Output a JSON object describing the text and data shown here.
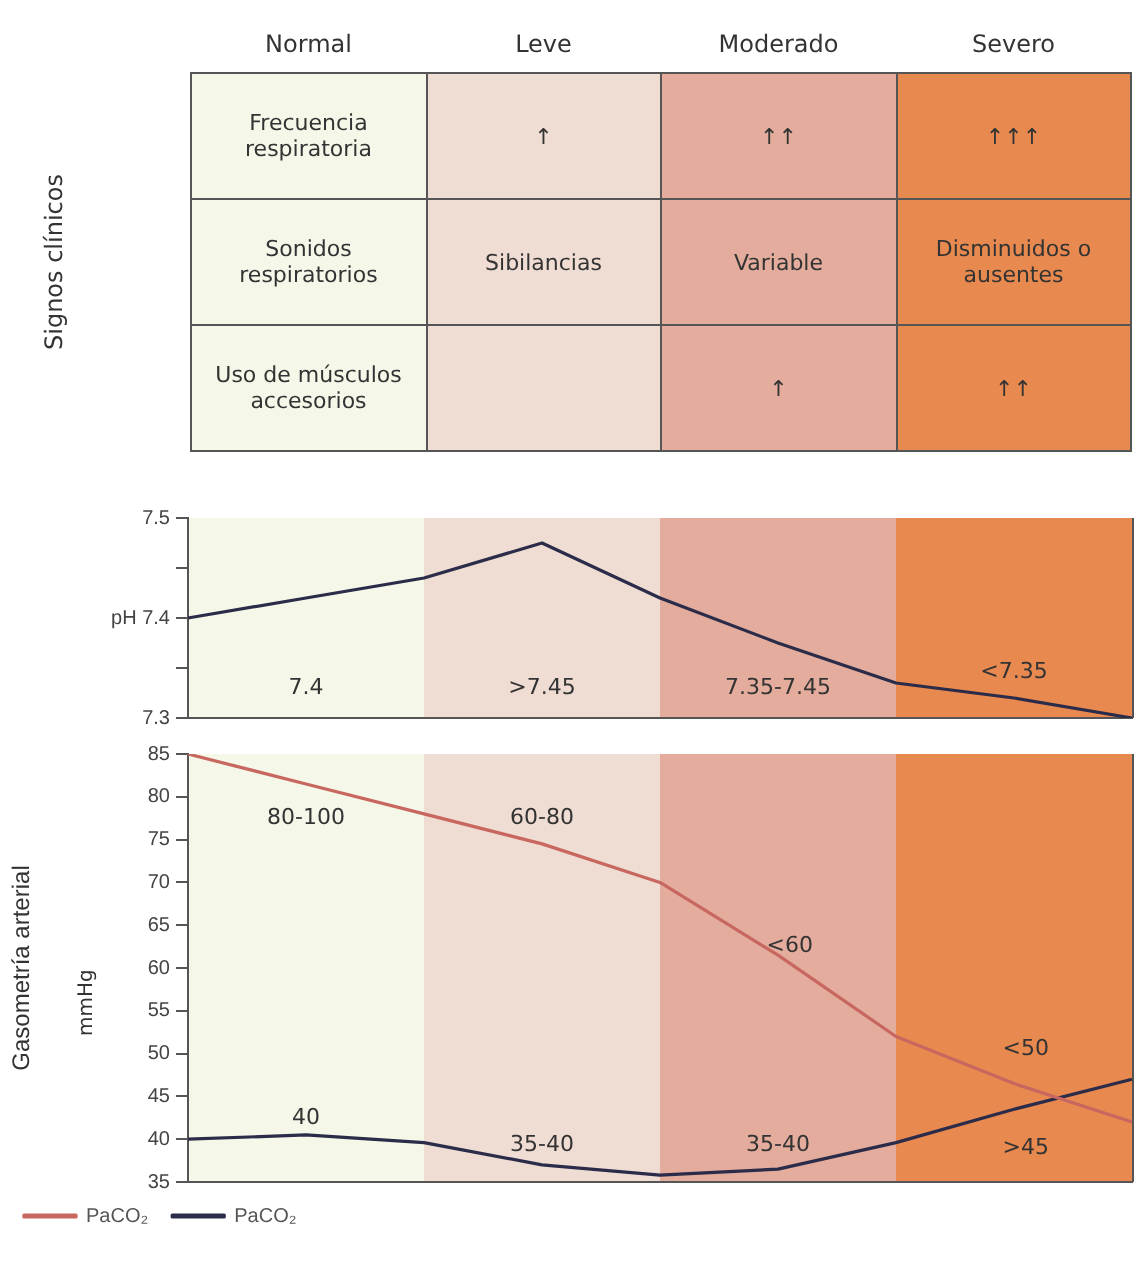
{
  "chart_data": [
    {
      "type": "other",
      "ylabel": "Signos clínicos",
      "categories": [
        "Normal",
        "Leve",
        "Moderado",
        "Severo"
      ],
      "colors": [
        "#f5f7e8",
        "#efdcd2",
        "#e4ac9c",
        "#e8894f"
      ],
      "y_categories": [
        "Frecuencia respiratoria",
        "Sonidos respiratorios",
        "Uso de músculos accesorios"
      ],
      "cell_labels": [
        [
          null,
          "↑",
          "↑↑",
          "↑↑↑"
        ],
        [
          null,
          "Sibilancias",
          "Variable",
          "Disminuidos o ausentes"
        ],
        [
          null,
          null,
          "↑",
          "↑↑"
        ]
      ]
    },
    {
      "type": "line",
      "tick_labels": "y",
      "categories": [
        null,
        null,
        null,
        null,
        null,
        null,
        null,
        null,
        null
      ],
      "ylim": [
        7.3,
        7.5
      ],
      "yticks": [
        7.3,
        {
          "value": 7.35,
          "label": null
        },
        {
          "value": 7.4,
          "label": "pH 7.4"
        },
        {
          "value": 7.45,
          "label": null
        },
        7.5
      ],
      "grid": false,
      "legend": false,
      "marker": "none",
      "series": [
        {
          "color": "#2b2b4a",
          "values": [
            7.4,
            7.42,
            7.44,
            7.475,
            7.42,
            7.375,
            7.335,
            7.32,
            7.3
          ]
        }
      ],
      "annotations": [
        "7.4",
        ">7.45",
        "7.35-7.45",
        "<7.35"
      ]
    },
    {
      "type": "line",
      "tick_labels": "y",
      "categories": [
        null,
        null,
        null,
        null,
        null,
        null,
        null,
        null,
        null
      ],
      "ylim": [
        35,
        85
      ],
      "yticks": [
        35,
        40,
        45,
        50,
        55,
        60,
        65,
        70,
        75,
        80,
        85
      ],
      "ylabel": "Gasometría arterial",
      "grid": false,
      "legend": "bottom left",
      "marker": "none",
      "series": [
        {
          "name": "PaCO₂",
          "color": "#c8675f",
          "values": [
            85,
            81.5,
            78,
            74.5,
            70,
            61.5,
            52,
            46.5,
            42
          ]
        },
        {
          "name": "PaCO₂",
          "color": "#2b2b4a",
          "values": [
            40,
            40.5,
            39.6,
            37,
            35.8,
            36.5,
            39.6,
            43.5,
            47
          ]
        }
      ],
      "annotations": [
        "mmHg",
        "80-100",
        "60-80",
        "<60",
        "<50",
        "40",
        "35-40",
        "35-40",
        ">45"
      ]
    }
  ]
}
